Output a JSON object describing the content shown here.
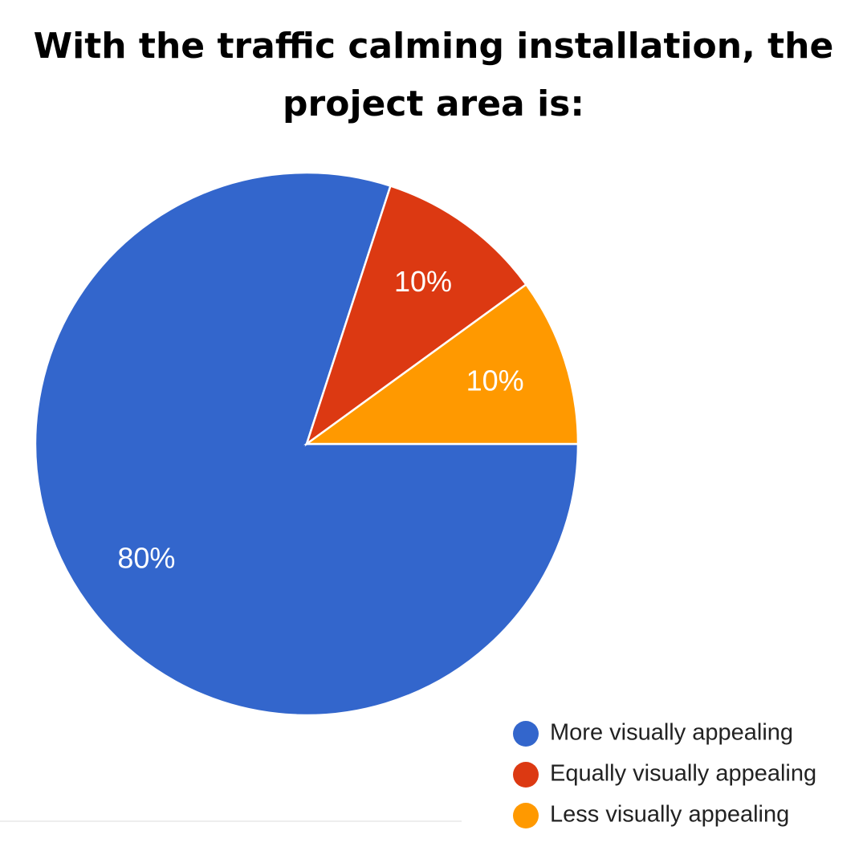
{
  "chart_data": {
    "type": "pie",
    "title": "With the traffic calming installation, the project area is:",
    "categories": [
      "More visually appealing",
      "Equally visually appealing",
      "Less visually appealing"
    ],
    "values": [
      80,
      10,
      10
    ],
    "value_labels": [
      "80%",
      "10%",
      "10%"
    ],
    "colors": [
      "#3366cc",
      "#dc3912",
      "#ff9900"
    ],
    "legend": "bottom-right"
  }
}
